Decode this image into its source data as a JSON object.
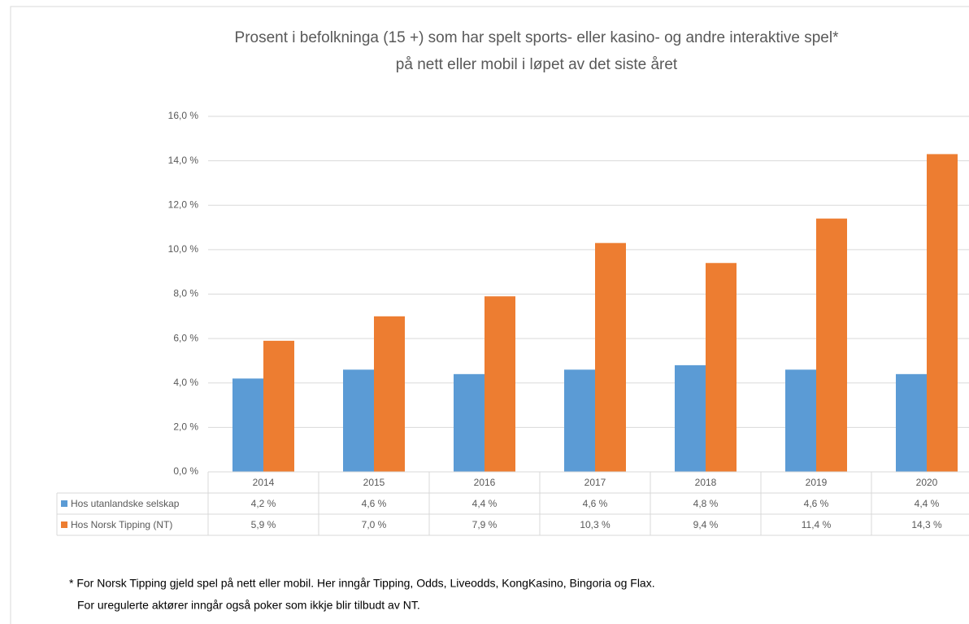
{
  "chart_data": {
    "type": "bar",
    "title": [
      "Prosent i befolkninga (15 +) som har spelt sports- eller kasino- og andre interaktive spel*",
      "på nett eller mobil i løpet av det siste året"
    ],
    "categories": [
      "2014",
      "2015",
      "2016",
      "2017",
      "2018",
      "2019",
      "2020"
    ],
    "series": [
      {
        "name": "Hos utanlandske selskap",
        "color": "#5b9bd5",
        "values": [
          4.2,
          4.6,
          4.4,
          4.6,
          4.8,
          4.6,
          4.4
        ],
        "value_labels": [
          "4,2 %",
          "4,6 %",
          "4,4 %",
          "4,6 %",
          "4,8 %",
          "4,6 %",
          "4,4 %"
        ]
      },
      {
        "name": "Hos Norsk Tipping (NT)",
        "color": "#ed7d31",
        "values": [
          5.9,
          7.0,
          7.9,
          10.3,
          9.4,
          11.4,
          14.3
        ],
        "value_labels": [
          "5,9 %",
          "7,0 %",
          "7,9 %",
          "10,3 %",
          "9,4 %",
          "11,4 %",
          "14,3 %"
        ]
      }
    ],
    "ylim": [
      0,
      16
    ],
    "yticks": [
      {
        "value": 0,
        "label": "0,0 %"
      },
      {
        "value": 2,
        "label": "2,0 %"
      },
      {
        "value": 4,
        "label": "4,0 %"
      },
      {
        "value": 6,
        "label": "6,0 %"
      },
      {
        "value": 8,
        "label": "8,0 %"
      },
      {
        "value": 10,
        "label": "10,0 %"
      },
      {
        "value": 12,
        "label": "12,0 %"
      },
      {
        "value": 14,
        "label": "14,0 %"
      },
      {
        "value": 16,
        "label": "16,0 %"
      }
    ],
    "grid": true,
    "footnote": [
      "* For Norsk Tipping gjeld spel på nett eller mobil. Her inngår Tipping, Odds, Liveodds, KongKasino, Bingoria og Flax.",
      "For uregulerte aktører inngår også poker som ikkje blir tilbudt av NT."
    ]
  }
}
